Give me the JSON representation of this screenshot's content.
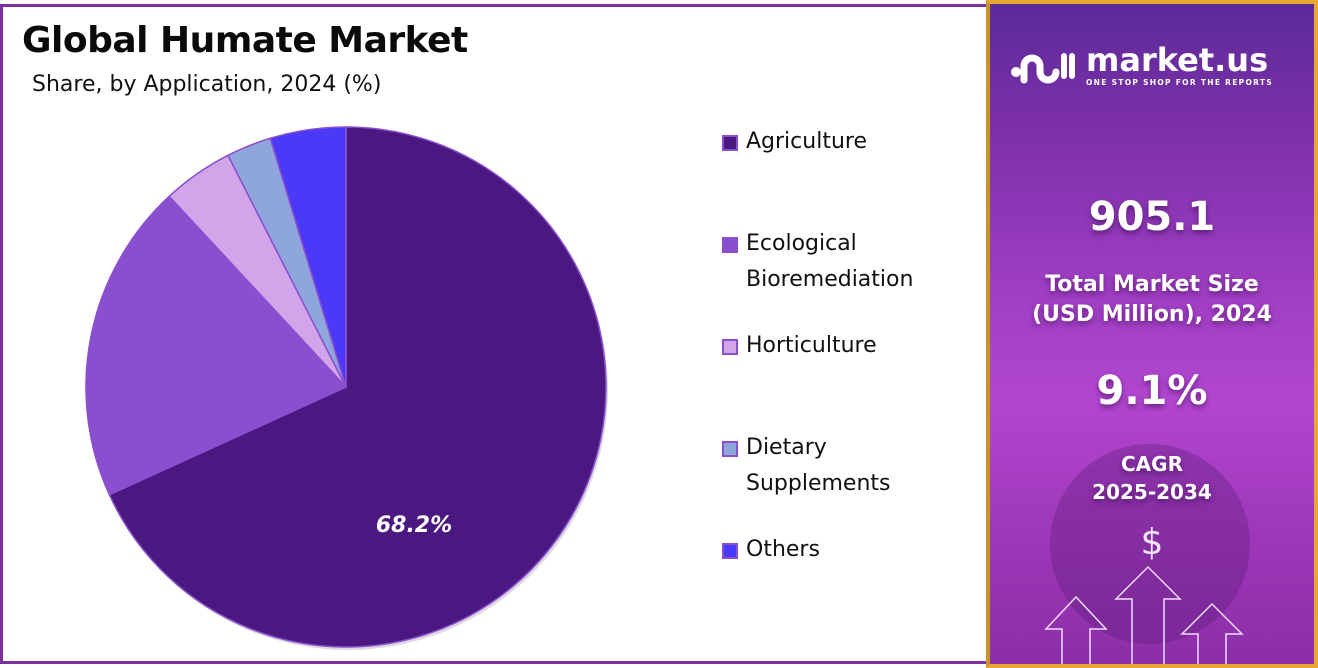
{
  "header": {
    "title": "Global Humate Market",
    "subtitle": "Share, by Application, 2024 (%)"
  },
  "chart_data": {
    "type": "pie",
    "title": "Global Humate Market",
    "subtitle": "Share, by Application, 2024 (%)",
    "categories": [
      "Agriculture",
      "Ecological Bioremediation",
      "Horticulture",
      "Dietary Supplements",
      "Others"
    ],
    "values": [
      68.2,
      19.9,
      4.4,
      2.8,
      4.7
    ],
    "colors": [
      "#4b1882",
      "#8a4fcf",
      "#d2a4ea",
      "#8fa6dc",
      "#4a3af8"
    ],
    "data_labels": [
      {
        "category": "Agriculture",
        "text": "68.2%"
      }
    ],
    "start_angle": "12 o'clock",
    "direction": "clockwise",
    "legend_position": "right"
  },
  "legend": {
    "items": [
      {
        "label_lines": [
          "Agriculture"
        ],
        "color": "#4b1882"
      },
      {
        "label_lines": [
          "Ecological",
          "Bioremediation"
        ],
        "color": "#8a4fcf"
      },
      {
        "label_lines": [
          "Horticulture"
        ],
        "color": "#d2a4ea"
      },
      {
        "label_lines": [
          "Dietary",
          "Supplements"
        ],
        "color": "#8fa6dc"
      },
      {
        "label_lines": [
          "Others"
        ],
        "color": "#4a3af8"
      }
    ]
  },
  "pie_label": "68.2%",
  "sidebar": {
    "brand": "market.us",
    "tagline": "ONE STOP SHOP FOR THE REPORTS",
    "market_size_value": "905.1",
    "market_size_label_1": "Total Market Size",
    "market_size_label_2": "(USD Million), 2024",
    "cagr_value": "9.1%",
    "cagr_label_1": "CAGR",
    "cagr_label_2": "2025-2034",
    "currency_symbol": "$"
  }
}
